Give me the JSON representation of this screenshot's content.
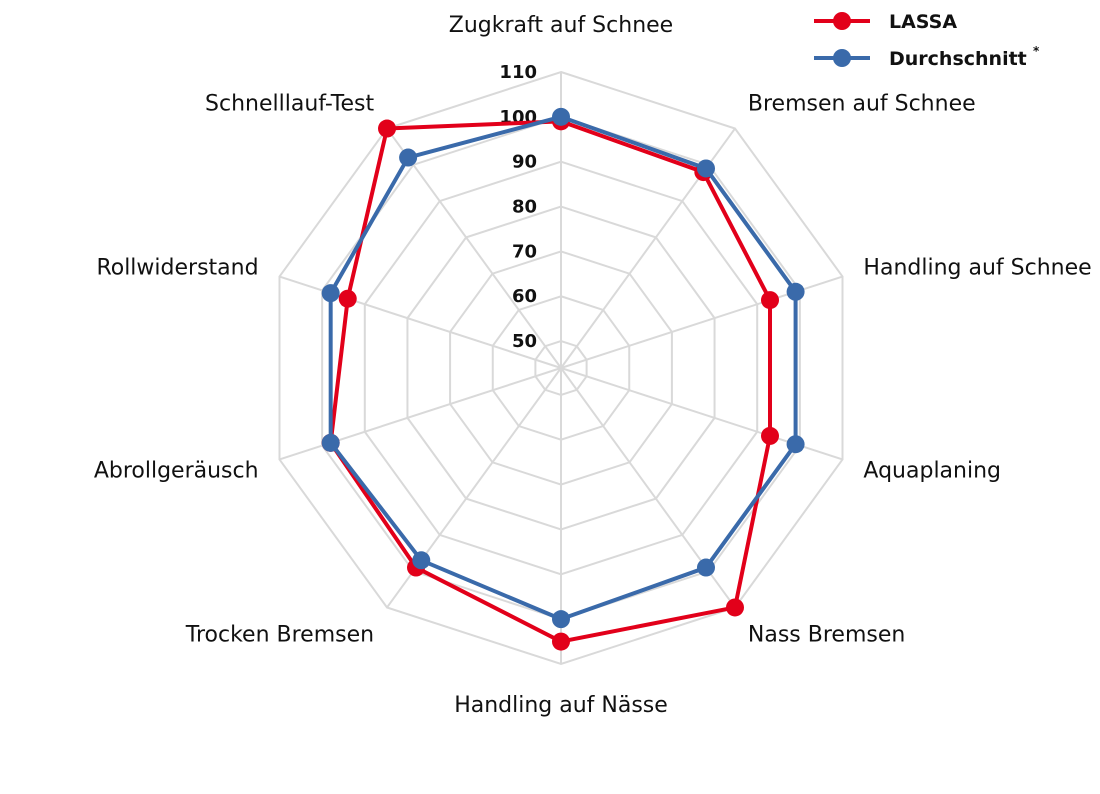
{
  "chart_data": {
    "type": "radar",
    "categories": [
      "Zugkraft auf Schnee",
      "Bremsen auf Schnee",
      "Handling auf Schnee",
      "Aquaplaning",
      "Nass Bremsen",
      "Handling auf Nässe",
      "Trocken Bremsen",
      "Abrollgeräusch",
      "Rollwiderstand",
      "Schnelllauf-Test"
    ],
    "ticks": [
      "50",
      "60",
      "70",
      "80",
      "90",
      "100",
      "110"
    ],
    "rlim": [
      44,
      110
    ],
    "grid": true,
    "legend_position": "top-right",
    "series": [
      {
        "name": "LASSA",
        "color": "#e2001a",
        "values": [
          99,
          98,
          93,
          93,
          110,
          105,
          99,
          98,
          94,
          110
        ]
      },
      {
        "name": "Durchschnitt",
        "marker": "*",
        "color": "#3a6aaa",
        "values": [
          100,
          99,
          99,
          99,
          99,
          100,
          97,
          98,
          98,
          102
        ]
      }
    ]
  }
}
